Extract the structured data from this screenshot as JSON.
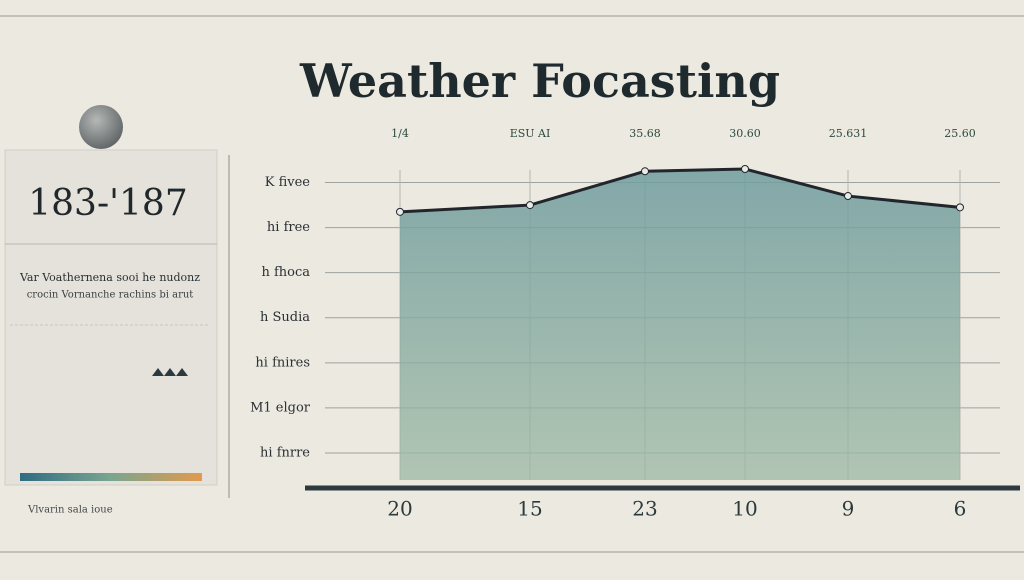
{
  "header": {
    "title": "Weather Focasting"
  },
  "sidebar": {
    "range": "183-'187",
    "lines": [
      "Var Voathernena sooi he nudonz",
      "crocin Vornanche rachins bi arut"
    ],
    "footer": "Vlvarin sala ioue"
  },
  "chart_data": {
    "type": "line",
    "categories": [
      "20",
      "15",
      "23",
      "10",
      "9",
      "6"
    ],
    "top_labels": [
      "1/4",
      "ESU AI",
      "35.68",
      "30.60",
      "25.631",
      "25.60"
    ],
    "series": [
      {
        "color": "#22262c",
        "values": [
          6.35,
          6.5,
          7.25,
          7.3,
          6.7,
          6.45
        ]
      }
    ],
    "ylim": [
      0.4,
      7.5
    ],
    "yticks": [
      {
        "value": 1,
        "label": "hi fnrre"
      },
      {
        "value": 2,
        "label": "M1 elgor"
      },
      {
        "value": 3,
        "label": "hi fnires"
      },
      {
        "value": 4,
        "label": "h Sudia"
      },
      {
        "value": 5,
        "label": "h fhoca"
      },
      {
        "value": 6,
        "label": "hi free"
      },
      {
        "value": 7,
        "label": "K fivee"
      }
    ],
    "grid": true
  }
}
